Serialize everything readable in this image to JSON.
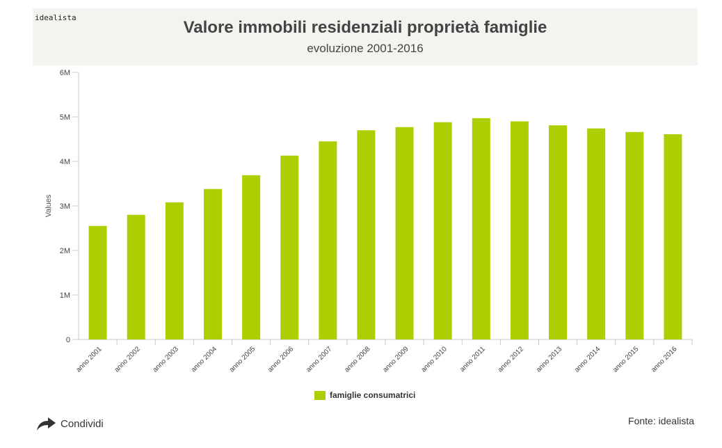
{
  "header": {
    "brand": "idealista",
    "title": "Valore immobili residenziali proprietà famiglie",
    "subtitle": "evoluzione 2001-2016"
  },
  "footer": {
    "share_label": "Condividi",
    "share_icon": "share-arrow-icon",
    "source": "Fonte: idealista"
  },
  "colors": {
    "bar": "#adcf01",
    "axis": "#c8c8c8",
    "header_bg": "#f3f3ef"
  },
  "chart_data": {
    "type": "bar",
    "ylabel": "Values",
    "ylim": [
      0,
      6000000
    ],
    "yticks": [
      {
        "value": 0,
        "label": "0"
      },
      {
        "value": 1000000,
        "label": "1M"
      },
      {
        "value": 2000000,
        "label": "2M"
      },
      {
        "value": 3000000,
        "label": "3M"
      },
      {
        "value": 4000000,
        "label": "4M"
      },
      {
        "value": 5000000,
        "label": "5M"
      },
      {
        "value": 6000000,
        "label": "6M"
      }
    ],
    "categories": [
      "anno 2001",
      "anno 2002",
      "anno 2003",
      "anno 2004",
      "anno 2005",
      "anno 2006",
      "anno 2007",
      "anno 2008",
      "anno 2009",
      "anno 2010",
      "anno 2011",
      "anno 2012",
      "anno 2013",
      "anno 2014",
      "anno 2015",
      "anno 2016"
    ],
    "series": [
      {
        "name": "famiglie consumatrici",
        "values": [
          2550000,
          2800000,
          3080000,
          3380000,
          3690000,
          4130000,
          4450000,
          4700000,
          4770000,
          4880000,
          4970000,
          4900000,
          4810000,
          4740000,
          4660000,
          4610000
        ]
      }
    ],
    "legend_position": "bottom",
    "grid": false
  }
}
